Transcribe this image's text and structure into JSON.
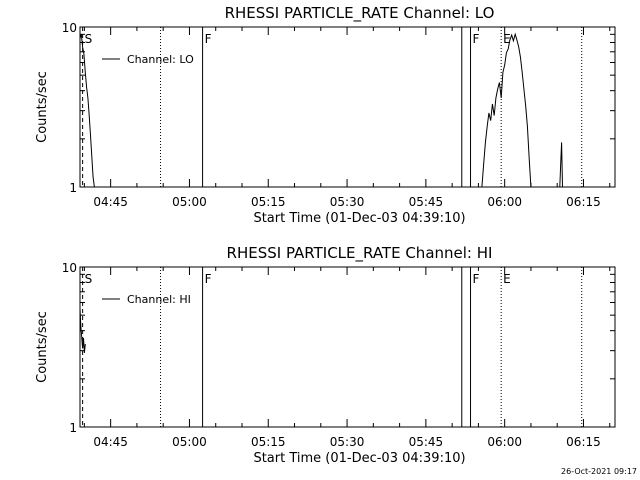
{
  "chart_data": [
    {
      "type": "line",
      "title": "RHESSI PARTICLE_RATE Channel: LO",
      "xlabel": "Start Time (01-Dec-03 04:39:10)",
      "ylabel": "Counts/sec",
      "y_scale": "log",
      "ylim": [
        1,
        10
      ],
      "xlim": [
        "04:39:10",
        "06:21:00"
      ],
      "y_ticks": [
        "1",
        "10"
      ],
      "x_ticks": [
        "04:45",
        "05:00",
        "05:15",
        "05:30",
        "05:45",
        "06:00",
        "06:15"
      ],
      "legend": {
        "position": "top-left",
        "entries": [
          "Channel: LO"
        ]
      },
      "grid": false,
      "markers": [
        {
          "label": "S",
          "time": "04:39:40",
          "style": "dashed"
        },
        {
          "label": "",
          "time": "04:54:30",
          "style": "dotted"
        },
        {
          "label": "F",
          "time": "05:02:30",
          "style": "solid"
        },
        {
          "label": "",
          "time": "05:51:50",
          "style": "solid"
        },
        {
          "label": "F",
          "time": "05:53:30",
          "style": "solid"
        },
        {
          "label": "E",
          "time": "05:59:20",
          "style": "dotted"
        },
        {
          "label": "",
          "time": "06:14:40",
          "style": "dotted"
        }
      ],
      "series": [
        {
          "name": "Channel: LO",
          "segments": [
            {
              "x": [
                "04:39:10",
                "04:39:25",
                "04:39:40",
                "04:39:55",
                "04:40:10",
                "04:40:25",
                "04:40:40",
                "04:40:55",
                "04:41:10",
                "04:41:25",
                "04:41:40",
                "04:41:55"
              ],
              "y": [
                8.5,
                9.0,
                7.5,
                6.8,
                5.2,
                4.2,
                3.6,
                2.8,
                2.1,
                1.55,
                1.15,
                0.9
              ]
            },
            {
              "x": [
                "05:55:40",
                "05:56:00",
                "05:56:20",
                "05:56:40",
                "05:57:00",
                "05:57:20",
                "05:57:40",
                "05:58:00",
                "05:58:20",
                "05:58:40",
                "05:59:00",
                "05:59:20",
                "05:59:40",
                "06:00:00",
                "06:00:20",
                "06:00:40",
                "06:01:00",
                "06:01:20",
                "06:01:40",
                "06:02:00",
                "06:02:20",
                "06:02:40",
                "06:03:00",
                "06:03:20",
                "06:03:40",
                "06:04:00",
                "06:04:20",
                "06:04:40",
                "06:05:00"
              ],
              "y": [
                0.9,
                1.4,
                1.9,
                2.4,
                2.9,
                2.6,
                3.3,
                2.8,
                3.6,
                4.1,
                4.5,
                3.6,
                5.2,
                5.8,
                6.9,
                7.3,
                8.3,
                8.9,
                8.2,
                9.0,
                8.3,
                7.5,
                6.5,
                5.2,
                4.1,
                3.2,
                2.4,
                1.5,
                0.9
              ]
            },
            {
              "x": [
                "06:10:30",
                "06:10:40",
                "06:10:50",
                "06:11:00"
              ],
              "y": [
                0.9,
                1.4,
                1.9,
                0.9
              ]
            }
          ]
        }
      ]
    },
    {
      "type": "line",
      "title": "RHESSI PARTICLE_RATE Channel: HI",
      "xlabel": "Start Time (01-Dec-03 04:39:10)",
      "ylabel": "Counts/sec",
      "y_scale": "log",
      "ylim": [
        1,
        10
      ],
      "xlim": [
        "04:39:10",
        "06:21:00"
      ],
      "y_ticks": [
        "1",
        "10"
      ],
      "x_ticks": [
        "04:45",
        "05:00",
        "05:15",
        "05:30",
        "05:45",
        "06:00",
        "06:15"
      ],
      "legend": {
        "position": "top-left",
        "entries": [
          "Channel: HI"
        ]
      },
      "grid": false,
      "markers": [
        {
          "label": "S",
          "time": "04:39:40",
          "style": "dashed"
        },
        {
          "label": "",
          "time": "04:54:30",
          "style": "dotted"
        },
        {
          "label": "F",
          "time": "05:02:30",
          "style": "solid"
        },
        {
          "label": "",
          "time": "05:51:50",
          "style": "solid"
        },
        {
          "label": "F",
          "time": "05:53:30",
          "style": "solid"
        },
        {
          "label": "E",
          "time": "05:59:20",
          "style": "dotted"
        },
        {
          "label": "",
          "time": "06:14:40",
          "style": "dotted"
        }
      ],
      "series": [
        {
          "name": "Channel: HI",
          "segments": [
            {
              "x": [
                "04:39:10",
                "04:39:20",
                "04:39:30",
                "04:39:40",
                "04:39:50",
                "04:40:00",
                "04:40:10"
              ],
              "y": [
                5.5,
                4.2,
                3.6,
                3.1,
                3.6,
                2.9,
                3.3
              ]
            }
          ]
        }
      ]
    }
  ],
  "timestamp": "26-Oct-2021 09:17"
}
